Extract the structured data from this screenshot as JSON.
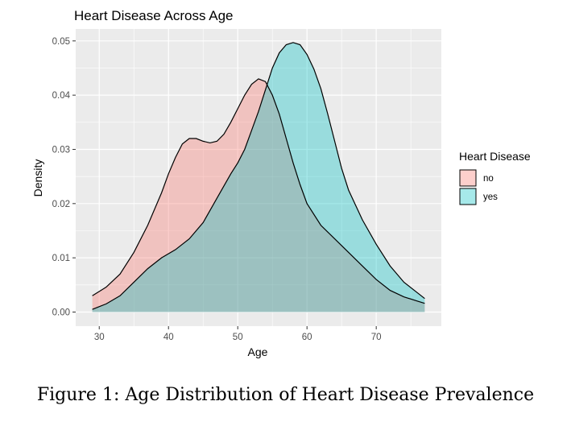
{
  "caption": "Figure 1: Age Distribution of Heart Disease Prevalence",
  "chart_data": {
    "type": "area",
    "title": "Heart Disease Across Age",
    "xlabel": "Age",
    "ylabel": "Density",
    "xlim": [
      26.6,
      79.4
    ],
    "ylim": [
      -0.0026,
      0.0522
    ],
    "x_ticks": [
      30,
      40,
      50,
      60,
      70
    ],
    "y_ticks": [
      0.0,
      0.01,
      0.02,
      0.03,
      0.04,
      0.05
    ],
    "x_tick_labels": [
      "30",
      "40",
      "50",
      "60",
      "70"
    ],
    "y_tick_labels": [
      "0.00",
      "0.01",
      "0.02",
      "0.03",
      "0.04",
      "0.05"
    ],
    "grid": true,
    "legend": {
      "title": "Heart Disease",
      "position": "right"
    },
    "series": [
      {
        "name": "no",
        "color": "#F8766D",
        "points": [
          [
            29,
            0.003
          ],
          [
            31,
            0.0046
          ],
          [
            33,
            0.007
          ],
          [
            35,
            0.011
          ],
          [
            37,
            0.016
          ],
          [
            39,
            0.022
          ],
          [
            40,
            0.0255
          ],
          [
            41,
            0.0285
          ],
          [
            42,
            0.031
          ],
          [
            43,
            0.032
          ],
          [
            44,
            0.032
          ],
          [
            45,
            0.0315
          ],
          [
            46,
            0.0312
          ],
          [
            47,
            0.0315
          ],
          [
            48,
            0.0328
          ],
          [
            49,
            0.035
          ],
          [
            50,
            0.0375
          ],
          [
            51,
            0.04
          ],
          [
            52,
            0.042
          ],
          [
            53,
            0.043
          ],
          [
            54,
            0.0425
          ],
          [
            55,
            0.04
          ],
          [
            56,
            0.0365
          ],
          [
            57,
            0.032
          ],
          [
            58,
            0.0275
          ],
          [
            59,
            0.0235
          ],
          [
            60,
            0.02
          ],
          [
            62,
            0.016
          ],
          [
            64,
            0.0135
          ],
          [
            66,
            0.011
          ],
          [
            68,
            0.0085
          ],
          [
            70,
            0.006
          ],
          [
            72,
            0.004
          ],
          [
            74,
            0.0028
          ],
          [
            76,
            0.002
          ],
          [
            77,
            0.0016
          ]
        ]
      },
      {
        "name": "yes",
        "color": "#00BFC4",
        "points": [
          [
            29,
            0.0005
          ],
          [
            31,
            0.0015
          ],
          [
            33,
            0.003
          ],
          [
            35,
            0.0055
          ],
          [
            37,
            0.008
          ],
          [
            39,
            0.01
          ],
          [
            41,
            0.0115
          ],
          [
            43,
            0.0135
          ],
          [
            45,
            0.0165
          ],
          [
            47,
            0.021
          ],
          [
            49,
            0.0255
          ],
          [
            50,
            0.0275
          ],
          [
            51,
            0.03
          ],
          [
            52,
            0.0335
          ],
          [
            53,
            0.037
          ],
          [
            54,
            0.041
          ],
          [
            55,
            0.045
          ],
          [
            56,
            0.0478
          ],
          [
            57,
            0.0493
          ],
          [
            58,
            0.0497
          ],
          [
            59,
            0.0493
          ],
          [
            60,
            0.0475
          ],
          [
            61,
            0.0448
          ],
          [
            62,
            0.0412
          ],
          [
            63,
            0.0365
          ],
          [
            64,
            0.0315
          ],
          [
            65,
            0.0265
          ],
          [
            66,
            0.0225
          ],
          [
            68,
            0.017
          ],
          [
            70,
            0.0125
          ],
          [
            72,
            0.0085
          ],
          [
            74,
            0.0055
          ],
          [
            76,
            0.0035
          ],
          [
            77,
            0.0025
          ]
        ]
      }
    ]
  }
}
